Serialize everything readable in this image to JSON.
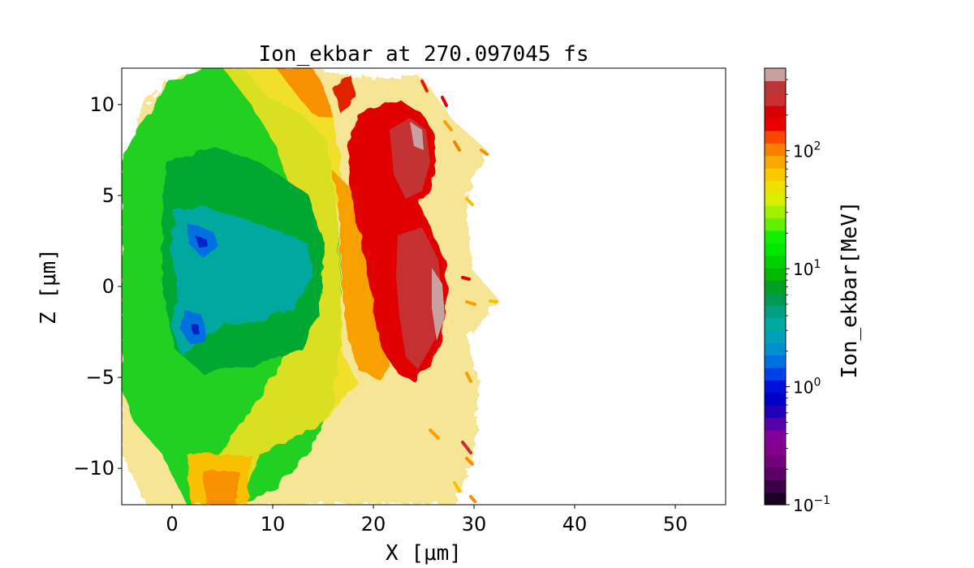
{
  "chart_data": {
    "type": "heatmap",
    "title": "Ion_ekbar at 270.097045 fs",
    "xlabel": "X [μm]",
    "ylabel": "Z [μm]",
    "colorbar_label": "Ion_ekbar[MeV]",
    "xlim": [
      -5,
      55
    ],
    "ylim": [
      -12,
      12
    ],
    "x_ticks": [
      0,
      10,
      20,
      30,
      40,
      50
    ],
    "y_ticks": [
      -10,
      -5,
      0,
      5,
      10
    ],
    "colorbar": {
      "scale": "log",
      "range": [
        0.1,
        500
      ],
      "ticks": [
        {
          "value": 0.1,
          "base": "10",
          "exp": "−1"
        },
        {
          "value": 1,
          "base": "10",
          "exp": "0"
        },
        {
          "value": 10,
          "base": "10",
          "exp": "1"
        },
        {
          "value": 100,
          "base": "10",
          "exp": "2"
        }
      ],
      "colors": [
        "#1a0022",
        "#3d0048",
        "#5a0066",
        "#72007a",
        "#85008a",
        "#800099",
        "#5500a8",
        "#2200b8",
        "#0000c8",
        "#0010d8",
        "#0040e8",
        "#0070e0",
        "#0090d0",
        "#00a0b8",
        "#00a8a0",
        "#00a080",
        "#009a50",
        "#00a020",
        "#00b800",
        "#00d000",
        "#00e800",
        "#10f000",
        "#60f000",
        "#a0f000",
        "#d8f000",
        "#f0e000",
        "#f8c800",
        "#f8a800",
        "#f88000",
        "#f84800",
        "#e80000",
        "#d80000",
        "#c83030",
        "#b83838",
        "#c8a0a0"
      ]
    },
    "background_color": "#ffffff"
  }
}
